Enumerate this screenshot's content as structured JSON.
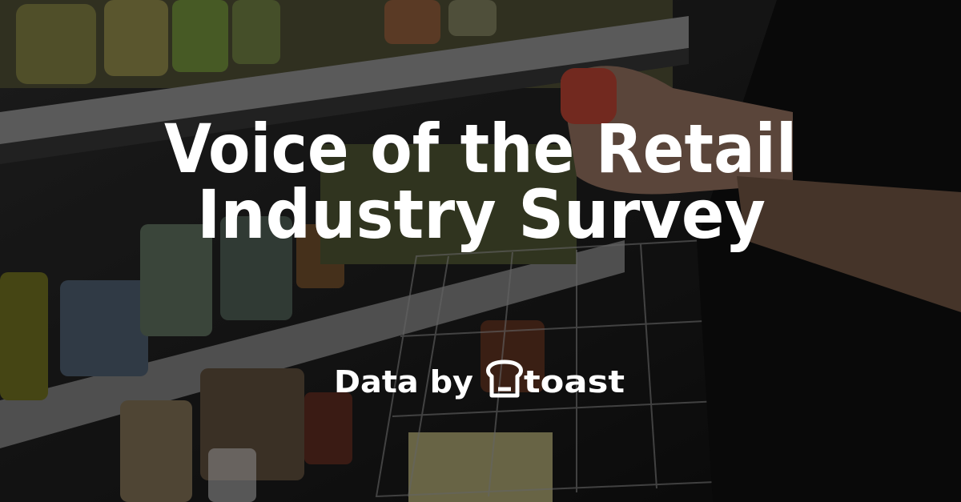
{
  "title_lines": [
    "Voice of the Retail",
    "Industry Survey"
  ],
  "byline": "Data by",
  "brand": "toast"
}
